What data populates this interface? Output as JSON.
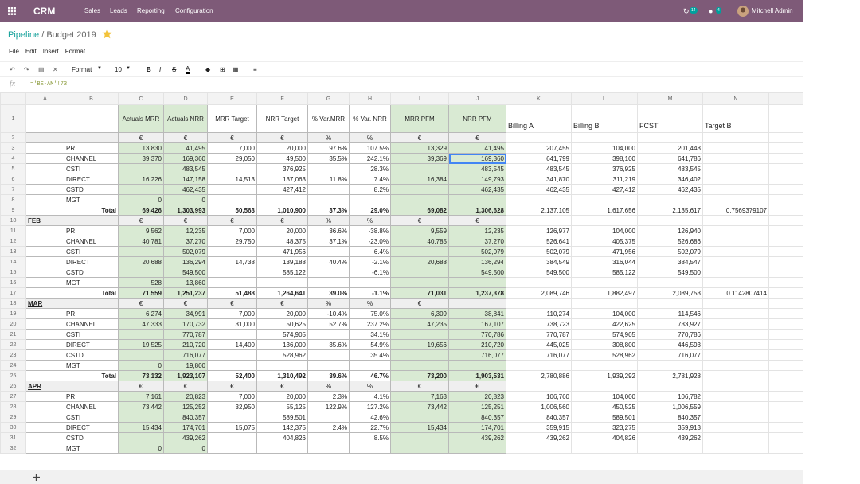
{
  "navbar": {
    "app": "CRM",
    "menu": [
      "Sales",
      "Leads",
      "Reporting",
      "Configuration"
    ],
    "badges": [
      "14",
      "4"
    ],
    "user": "Mitchell Admin"
  },
  "breadcrumb": {
    "parent": "Pipeline",
    "separator": "/",
    "current": "Budget 2019"
  },
  "menu": [
    "File",
    "Edit",
    "Insert",
    "Format"
  ],
  "toolbar": {
    "format": "Format",
    "font_size": "10",
    "bold": "B",
    "italic": "I",
    "strike": "S",
    "color": "A"
  },
  "formula_bar": {
    "label": "fx",
    "content": "='BE-AM'!73"
  },
  "sheet": {
    "columns": [
      "A",
      "B",
      "C",
      "D",
      "E",
      "F",
      "G",
      "H",
      "I",
      "J",
      "K",
      "L",
      "M",
      "N"
    ],
    "rows": [
      {
        "number": "1",
        "cells": [
          null,
          null,
          "Actuals MRR",
          "Actuals NRR",
          "MRR Target",
          "NRR Target",
          "% Var.MRR",
          "% Var. NRR",
          "MRR PFM",
          "NRR PFM",
          "Billing A",
          "Billing B",
          "FCST",
          "Target B"
        ]
      },
      {
        "number": "2",
        "cells": [
          null,
          null,
          "€",
          "€",
          "€",
          "€",
          "%",
          "%",
          "€",
          "€"
        ]
      },
      {
        "number": "3",
        "cells": [
          null,
          "PR",
          "13,830",
          "41,495",
          "7,000",
          "20,000",
          "97.6%",
          "107.5%",
          "13,329",
          "41,495",
          "207,455",
          "104,000",
          "201,448"
        ]
      },
      {
        "number": "4",
        "cells": [
          null,
          "CHANNEL",
          "39,370",
          "169,360",
          "29,050",
          "49,500",
          "35.5%",
          "242.1%",
          "39,369",
          "169,360",
          "641,799",
          "398,100",
          "641,786"
        ]
      },
      {
        "number": "5",
        "cells": [
          null,
          "CSTI",
          null,
          "483,545",
          null,
          "376,925",
          null,
          "28.3%",
          null,
          "483,545",
          "483,545",
          "376,925",
          "483,545"
        ]
      },
      {
        "number": "6",
        "cells": [
          null,
          "DIRECT",
          "16,226",
          "147,158",
          "14,513",
          "137,063",
          "11.8%",
          "7.4%",
          "16,384",
          "149,793",
          "341,870",
          "311,219",
          "346,402"
        ]
      },
      {
        "number": "7",
        "cells": [
          null,
          "CSTD",
          null,
          "462,435",
          null,
          "427,412",
          null,
          "8.2%",
          null,
          "462,435",
          "462,435",
          "427,412",
          "462,435"
        ]
      },
      {
        "number": "8",
        "cells": [
          null,
          "MGT",
          "0",
          "0"
        ]
      },
      {
        "number": "9",
        "cells": [
          null,
          "Total",
          "69,426",
          "1,303,993",
          "50,563",
          "1,010,900",
          "37.3%",
          "29.0%",
          "69,082",
          "1,306,628",
          "2,137,105",
          "1,617,656",
          "2,135,617",
          "0.7569379107"
        ]
      },
      {
        "number": "10",
        "cells": [
          "FEB",
          null,
          "€",
          "€",
          "€",
          "€",
          "%",
          "%",
          "€",
          "€"
        ]
      },
      {
        "number": "11",
        "cells": [
          null,
          "PR",
          "9,562",
          "12,235",
          "7,000",
          "20,000",
          "36.6%",
          "-38.8%",
          "9,559",
          "12,235",
          "126,977",
          "104,000",
          "126,940"
        ]
      },
      {
        "number": "12",
        "cells": [
          null,
          "CHANNEL",
          "40,781",
          "37,270",
          "29,750",
          "48,375",
          "37.1%",
          "-23.0%",
          "40,785",
          "37,270",
          "526,641",
          "405,375",
          "526,686"
        ]
      },
      {
        "number": "13",
        "cells": [
          null,
          "CSTI",
          null,
          "502,079",
          null,
          "471,956",
          null,
          "6.4%",
          null,
          "502,079",
          "502,079",
          "471,956",
          "502,079"
        ]
      },
      {
        "number": "14",
        "cells": [
          null,
          "DIRECT",
          "20,688",
          "136,294",
          "14,738",
          "139,188",
          "40.4%",
          "-2.1%",
          "20,688",
          "136,294",
          "384,549",
          "316,044",
          "384,547"
        ]
      },
      {
        "number": "15",
        "cells": [
          null,
          "CSTD",
          null,
          "549,500",
          null,
          "585,122",
          null,
          "-6.1%",
          null,
          "549,500",
          "549,500",
          "585,122",
          "549,500"
        ]
      },
      {
        "number": "16",
        "cells": [
          null,
          "MGT",
          "528",
          "13,860"
        ]
      },
      {
        "number": "17",
        "cells": [
          null,
          "Total",
          "71,559",
          "1,251,237",
          "51,488",
          "1,264,641",
          "39.0%",
          "-1.1%",
          "71,031",
          "1,237,378",
          "2,089,746",
          "1,882,497",
          "2,089,753",
          "0.1142807414"
        ]
      },
      {
        "number": "18",
        "cells": [
          "MAR",
          null,
          "€",
          "€",
          "€",
          "€",
          "%",
          "%",
          "€"
        ]
      },
      {
        "number": "19",
        "cells": [
          null,
          "PR",
          "6,274",
          "34,991",
          "7,000",
          "20,000",
          "-10.4%",
          "75.0%",
          "6,309",
          "38,841",
          "110,274",
          "104,000",
          "114,546"
        ]
      },
      {
        "number": "20",
        "cells": [
          null,
          "CHANNEL",
          "47,333",
          "170,732",
          "31,000",
          "50,625",
          "52.7%",
          "237.2%",
          "47,235",
          "167,107",
          "738,723",
          "422,625",
          "733,927"
        ]
      },
      {
        "number": "21",
        "cells": [
          null,
          "CSTI",
          null,
          "770,787",
          null,
          "574,905",
          null,
          "34.1%",
          null,
          "770,786",
          "770,787",
          "574,905",
          "770,786"
        ]
      },
      {
        "number": "22",
        "cells": [
          null,
          "DIRECT",
          "19,525",
          "210,720",
          "14,400",
          "136,000",
          "35.6%",
          "54.9%",
          "19,656",
          "210,720",
          "445,025",
          "308,800",
          "446,593"
        ]
      },
      {
        "number": "23",
        "cells": [
          null,
          "CSTD",
          null,
          "716,077",
          null,
          "528,962",
          null,
          "35.4%",
          null,
          "716,077",
          "716,077",
          "528,962",
          "716,077"
        ]
      },
      {
        "number": "24",
        "cells": [
          null,
          "MGT",
          "0",
          "19,800"
        ]
      },
      {
        "number": "25",
        "cells": [
          null,
          "Total",
          "73,132",
          "1,923,107",
          "52,400",
          "1,310,492",
          "39.6%",
          "46.7%",
          "73,200",
          "1,903,531",
          "2,780,886",
          "1,939,292",
          "2,781,928"
        ]
      },
      {
        "number": "26",
        "cells": [
          "APR",
          null,
          "€",
          "€",
          "€",
          "€",
          "%",
          "%",
          "€",
          "€"
        ]
      },
      {
        "number": "27",
        "cells": [
          null,
          "PR",
          "7,161",
          "20,823",
          "7,000",
          "20,000",
          "2.3%",
          "4.1%",
          "7,163",
          "20,823",
          "106,760",
          "104,000",
          "106,782"
        ]
      },
      {
        "number": "28",
        "cells": [
          null,
          "CHANNEL",
          "73,442",
          "125,252",
          "32,950",
          "55,125",
          "122.9%",
          "127.2%",
          "73,442",
          "125,251",
          "1,006,560",
          "450,525",
          "1,006,559"
        ]
      },
      {
        "number": "29",
        "cells": [
          null,
          "CSTI",
          null,
          "840,357",
          null,
          "589,501",
          null,
          "42.6%",
          null,
          "840,357",
          "840,357",
          "589,501",
          "840,357"
        ]
      },
      {
        "number": "30",
        "cells": [
          null,
          "DIRECT",
          "15,434",
          "174,701",
          "15,075",
          "142,375",
          "2.4%",
          "22.7%",
          "15,434",
          "174,701",
          "359,915",
          "323,275",
          "359,913"
        ]
      },
      {
        "number": "31",
        "cells": [
          null,
          "CSTD",
          null,
          "439,262",
          null,
          "404,826",
          null,
          "8.5%",
          null,
          "439,262",
          "439,262",
          "404,826",
          "439,262"
        ]
      },
      {
        "number": "32",
        "cells": [
          null,
          "MGT",
          "0",
          "0"
        ]
      }
    ]
  }
}
